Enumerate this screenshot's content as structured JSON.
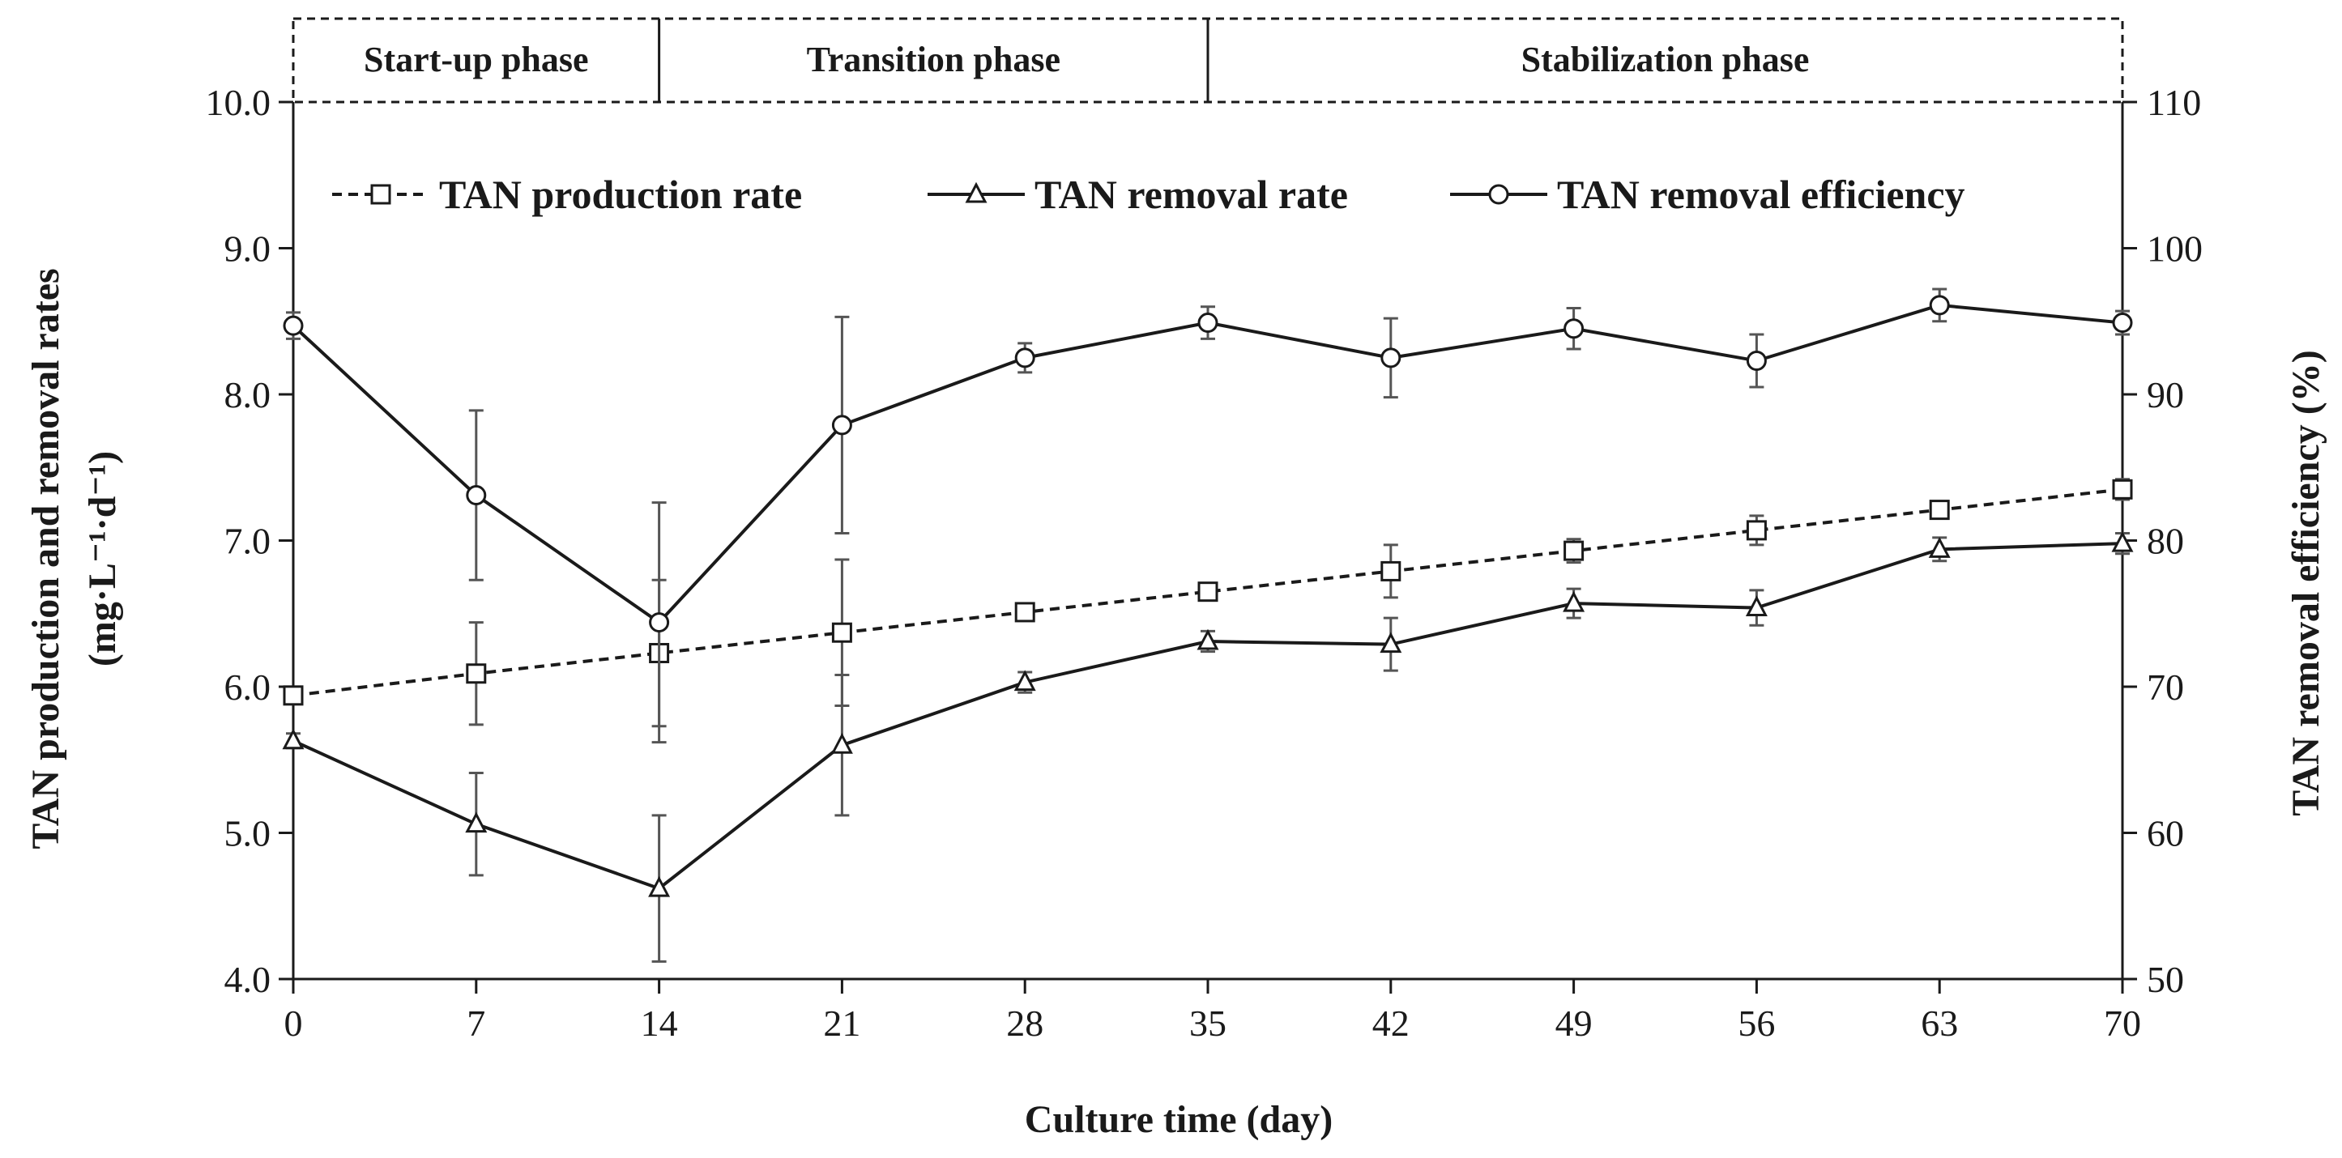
{
  "chart_data": {
    "type": "line",
    "xlabel": "Culture time (day)",
    "ylabel_left_line1": "TAN production and removal rates",
    "ylabel_left_line2": "(mg·L⁻¹·d⁻¹)",
    "ylabel_right": "TAN removal efficiency (%)",
    "x": [
      0,
      7,
      14,
      21,
      28,
      35,
      42,
      49,
      56,
      63,
      70
    ],
    "x_ticks": [
      "0",
      "7",
      "14",
      "21",
      "28",
      "35",
      "42",
      "49",
      "56",
      "63",
      "70"
    ],
    "xlim": [
      0,
      70
    ],
    "ylim_left": [
      4.0,
      10.0
    ],
    "y_ticks_left": [
      "4.0",
      "5.0",
      "6.0",
      "7.0",
      "8.0",
      "9.0",
      "10.0"
    ],
    "ylim_right": [
      50,
      110
    ],
    "y_ticks_right": [
      "50",
      "60",
      "70",
      "80",
      "90",
      "100",
      "110"
    ],
    "phases": [
      {
        "label": "Start-up phase",
        "start": 0,
        "end": 14
      },
      {
        "label": "Transition phase",
        "start": 14,
        "end": 35
      },
      {
        "label": "Stabilization phase",
        "start": 35,
        "end": 70
      }
    ],
    "series": [
      {
        "name": "TAN production rate",
        "axis": "left",
        "marker": "square",
        "dashed": true,
        "values": [
          5.94,
          6.09,
          6.23,
          6.37,
          6.51,
          6.65,
          6.79,
          6.93,
          7.07,
          7.21,
          7.35
        ],
        "errors": [
          0.05,
          0.35,
          0.5,
          0.5,
          0.05,
          0.05,
          0.18,
          0.08,
          0.1,
          0.05,
          0.07
        ]
      },
      {
        "name": "TAN removal rate",
        "axis": "left",
        "marker": "triangle",
        "dashed": false,
        "values": [
          5.63,
          5.06,
          4.62,
          5.6,
          6.03,
          6.31,
          6.29,
          6.57,
          6.54,
          6.94,
          6.98
        ],
        "errors": [
          0.05,
          0.35,
          0.5,
          0.48,
          0.07,
          0.07,
          0.18,
          0.1,
          0.12,
          0.08,
          0.07
        ]
      },
      {
        "name": "TAN removal efficiency",
        "axis": "right",
        "marker": "circle",
        "dashed": false,
        "values": [
          94.7,
          83.1,
          74.4,
          87.9,
          92.5,
          94.9,
          92.5,
          94.5,
          92.3,
          96.1,
          94.9
        ],
        "errors": [
          0.9,
          5.8,
          8.2,
          7.4,
          1.0,
          1.1,
          2.7,
          1.4,
          1.8,
          1.1,
          0.8
        ]
      }
    ]
  }
}
